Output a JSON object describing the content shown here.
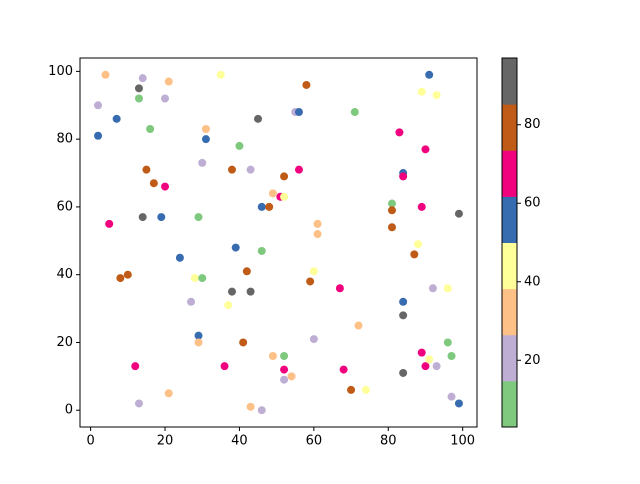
{
  "chart_data": {
    "type": "scatter",
    "x": [
      2,
      2,
      4,
      5,
      7,
      8,
      10,
      12,
      13,
      13,
      13,
      14,
      14,
      15,
      16,
      17,
      19,
      20,
      20,
      21,
      21,
      24,
      27,
      28,
      29,
      29,
      29,
      30,
      30,
      31,
      31,
      35,
      36,
      37,
      38,
      38,
      39,
      40,
      41,
      42,
      43,
      43,
      43,
      45,
      46,
      46,
      46,
      48,
      49,
      49,
      51,
      52,
      52,
      52,
      52,
      52,
      54,
      55,
      56,
      56,
      58,
      59,
      60,
      60,
      61,
      61,
      67,
      68,
      70,
      71,
      72,
      74,
      81,
      81,
      81,
      83,
      84,
      84,
      84,
      84,
      84,
      87,
      88,
      89,
      89,
      89,
      90,
      90,
      91,
      91,
      92,
      93,
      93,
      96,
      96,
      97,
      97,
      99,
      99
    ],
    "y": [
      90,
      81,
      99,
      55,
      86,
      39,
      40,
      13,
      95,
      92,
      2,
      98,
      57,
      71,
      83,
      67,
      57,
      92,
      66,
      97,
      5,
      45,
      32,
      39,
      57,
      22,
      20,
      73,
      39,
      83,
      80,
      99,
      13,
      31,
      71,
      35,
      48,
      78,
      20,
      41,
      71,
      35,
      1,
      86,
      60,
      47,
      0,
      60,
      64,
      16,
      63,
      69,
      63,
      16,
      12,
      9,
      10,
      88,
      88,
      71,
      96,
      38,
      41,
      21,
      55,
      52,
      36,
      12,
      6,
      88,
      25,
      6,
      61,
      59,
      54,
      82,
      70,
      69,
      32,
      28,
      11,
      46,
      49,
      94,
      60,
      17,
      77,
      13,
      99,
      15,
      36,
      93,
      13,
      36,
      20,
      16,
      4,
      58,
      2
    ],
    "c": [
      21,
      56,
      32,
      68,
      56,
      79,
      79,
      68,
      91,
      9,
      21,
      21,
      91,
      79,
      9,
      79,
      56,
      21,
      68,
      32,
      32,
      56,
      21,
      44,
      9,
      56,
      32,
      21,
      9,
      32,
      56,
      44,
      68,
      44,
      79,
      91,
      56,
      9,
      79,
      79,
      21,
      91,
      32,
      91,
      56,
      9,
      21,
      79,
      32,
      32,
      68,
      79,
      44,
      9,
      68,
      21,
      32,
      21,
      56,
      68,
      79,
      79,
      44,
      21,
      32,
      32,
      68,
      68,
      79,
      9,
      32,
      44,
      9,
      79,
      79,
      68,
      56,
      68,
      56,
      91,
      91,
      79,
      44,
      44,
      68,
      68,
      68,
      68,
      56,
      44,
      21,
      44,
      21,
      44,
      9,
      9,
      21,
      91,
      56
    ],
    "xlim": [
      -2.85,
      103.85
    ],
    "ylim": [
      -4.95,
      103.95
    ],
    "xticks": [
      0,
      20,
      40,
      60,
      80,
      100
    ],
    "yticks": [
      0,
      20,
      40,
      60,
      80,
      100
    ],
    "colormap": [
      "#7fc97f",
      "#beaed4",
      "#fdc086",
      "#ffff99",
      "#386cb0",
      "#f0027f",
      "#bf5b17",
      "#666666"
    ],
    "clim": [
      3,
      97
    ],
    "colorbar_ticks": [
      20,
      40,
      60,
      80
    ]
  }
}
